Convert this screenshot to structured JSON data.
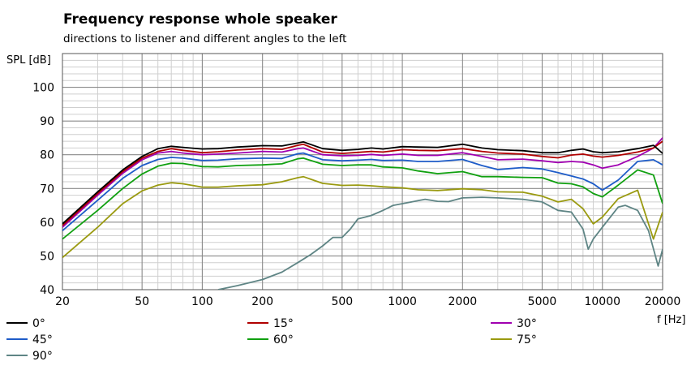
{
  "chart_data": {
    "type": "line",
    "title": "Frequency response whole speaker",
    "subtitle": "directions to listener and different angles to the left",
    "xlabel": "f [Hz]",
    "ylabel": "SPL [dB]",
    "xscale": "log",
    "xlim": [
      20,
      20000
    ],
    "ylim": [
      40,
      110
    ],
    "xticks": [
      20,
      50,
      100,
      200,
      500,
      1000,
      2000,
      5000,
      10000,
      20000
    ],
    "xtick_labels": [
      "20",
      "50",
      "100",
      "200",
      "500",
      "1000",
      "2000",
      "5000",
      "10000",
      "20000"
    ],
    "yticks": [
      40,
      50,
      60,
      70,
      80,
      90,
      100
    ],
    "ytick_labels": [
      "40",
      "50",
      "60",
      "70",
      "80",
      "90",
      "100"
    ],
    "grid": true,
    "legend_position": "bottom",
    "series": [
      {
        "name": "0°",
        "color": "#000000",
        "x": [
          20,
          30,
          40,
          50,
          60,
          70,
          80,
          100,
          120,
          150,
          200,
          250,
          300,
          320,
          400,
          500,
          600,
          700,
          800,
          1000,
          1200,
          1500,
          2000,
          2500,
          3000,
          4000,
          5000,
          6000,
          7000,
          8000,
          9000,
          10000,
          12000,
          15000,
          18000,
          20000
        ],
        "y": [
          59.5,
          69,
          75.5,
          79.5,
          81.8,
          82.5,
          82.2,
          81.7,
          81.8,
          82.3,
          82.7,
          82.6,
          83.5,
          83.8,
          81.8,
          81.3,
          81.6,
          82,
          81.7,
          82.4,
          82.3,
          82.2,
          83.1,
          82,
          81.5,
          81.2,
          80.6,
          80.6,
          81.3,
          81.7,
          80.9,
          80.6,
          80.9,
          81.8,
          82.8,
          80.4
        ]
      },
      {
        "name": "15°",
        "color": "#b00000",
        "x": [
          20,
          30,
          40,
          50,
          60,
          70,
          80,
          100,
          120,
          150,
          200,
          250,
          300,
          320,
          400,
          500,
          600,
          700,
          800,
          1000,
          1200,
          1500,
          2000,
          2500,
          3000,
          4000,
          5000,
          6000,
          7000,
          8000,
          9000,
          10000,
          12000,
          15000,
          18000,
          20000
        ],
        "y": [
          59,
          68.5,
          75,
          79,
          81,
          81.8,
          81.3,
          80.6,
          80.9,
          81.4,
          81.8,
          81.6,
          82.8,
          83.1,
          80.8,
          80.4,
          80.7,
          81,
          80.8,
          81.5,
          81.3,
          81.2,
          81.8,
          81,
          80.5,
          80.2,
          79.5,
          79.1,
          79.9,
          80.2,
          79.6,
          79.3,
          79.8,
          80.8,
          82,
          84
        ]
      },
      {
        "name": "30°",
        "color": "#a000b0",
        "x": [
          20,
          30,
          40,
          50,
          60,
          70,
          80,
          100,
          120,
          150,
          200,
          250,
          300,
          320,
          400,
          500,
          600,
          700,
          800,
          1000,
          1200,
          1500,
          2000,
          2500,
          3000,
          4000,
          5000,
          6000,
          7000,
          8000,
          9000,
          10000,
          12000,
          15000,
          18000,
          20000
        ],
        "y": [
          58.5,
          68,
          74.5,
          78.5,
          80.5,
          81,
          80.5,
          80,
          80.2,
          80.5,
          81,
          80.8,
          81.8,
          82,
          80,
          79.7,
          79.8,
          80.1,
          79.8,
          80.2,
          79.8,
          79.8,
          80.6,
          79.5,
          78.5,
          78.7,
          78.2,
          77.7,
          78,
          77.8,
          77,
          76,
          77,
          79.5,
          82,
          85
        ]
      },
      {
        "name": "45°",
        "color": "#1e5cc8",
        "x": [
          20,
          30,
          40,
          50,
          60,
          70,
          80,
          100,
          120,
          150,
          200,
          250,
          300,
          320,
          400,
          500,
          600,
          700,
          800,
          1000,
          1200,
          1500,
          2000,
          2500,
          3000,
          4000,
          5000,
          6000,
          7000,
          8000,
          9000,
          10000,
          12000,
          15000,
          18000,
          20000
        ],
        "y": [
          57.5,
          66.5,
          73,
          76.8,
          78.6,
          79.2,
          79,
          78.3,
          78.4,
          78.8,
          79,
          78.9,
          80.3,
          80.5,
          78.5,
          78.2,
          78.4,
          78.6,
          78.3,
          78.4,
          78,
          78,
          78.6,
          76.8,
          75.6,
          76.2,
          75.8,
          74.7,
          73.7,
          72.8,
          71.4,
          69.5,
          72.5,
          78,
          78.5,
          77
        ]
      },
      {
        "name": "60°",
        "color": "#10a010",
        "x": [
          20,
          30,
          40,
          50,
          60,
          70,
          80,
          100,
          120,
          150,
          200,
          250,
          300,
          320,
          400,
          500,
          600,
          700,
          800,
          1000,
          1200,
          1500,
          2000,
          2500,
          3000,
          4000,
          5000,
          6000,
          7000,
          8000,
          9000,
          10000,
          12000,
          15000,
          18000,
          20000
        ],
        "y": [
          55,
          63.5,
          70,
          74.3,
          76.6,
          77.5,
          77.4,
          76.5,
          76.4,
          76.8,
          77,
          77.3,
          78.8,
          79,
          77.2,
          76.8,
          77,
          77,
          76.4,
          76.1,
          75.2,
          74.4,
          75,
          73.5,
          73.5,
          73.3,
          73.2,
          71.6,
          71.4,
          70.5,
          68.5,
          67.5,
          71,
          75.5,
          74,
          65.5
        ]
      },
      {
        "name": "75°",
        "color": "#9a9a10",
        "x": [
          20,
          30,
          40,
          50,
          60,
          70,
          80,
          100,
          120,
          150,
          200,
          250,
          300,
          320,
          400,
          500,
          600,
          700,
          800,
          1000,
          1200,
          1500,
          2000,
          2500,
          3000,
          4000,
          5000,
          6000,
          7000,
          8000,
          9000,
          10000,
          12000,
          15000,
          18000,
          20000
        ],
        "y": [
          49.5,
          58.5,
          65.5,
          69.3,
          71,
          71.7,
          71.4,
          70.4,
          70.4,
          70.8,
          71.1,
          72,
          73.2,
          73.5,
          71.5,
          70.9,
          71,
          70.8,
          70.5,
          70.2,
          69.6,
          69.4,
          69.9,
          69.6,
          69,
          68.9,
          67.7,
          66,
          66.8,
          64,
          59.5,
          61.5,
          67,
          69.5,
          55,
          63
        ]
      },
      {
        "name": "90°",
        "color": "#5f8585",
        "x": [
          120,
          150,
          200,
          250,
          300,
          350,
          400,
          450,
          500,
          550,
          600,
          650,
          700,
          800,
          900,
          1000,
          1200,
          1300,
          1500,
          1700,
          2000,
          2500,
          3000,
          4000,
          5000,
          6000,
          7000,
          8000,
          8500,
          9000,
          10000,
          12000,
          13000,
          15000,
          17000,
          19000,
          20000
        ],
        "y": [
          40,
          41.2,
          43,
          45.2,
          48,
          50.5,
          53,
          55.5,
          55.5,
          58,
          61,
          61.5,
          62,
          63.5,
          65,
          65.5,
          66.4,
          66.8,
          66.2,
          66.1,
          67.2,
          67.4,
          67.2,
          66.8,
          66,
          63.5,
          63,
          58,
          52,
          55,
          58.5,
          64.5,
          65,
          63.5,
          57.5,
          47,
          52
        ]
      }
    ]
  }
}
